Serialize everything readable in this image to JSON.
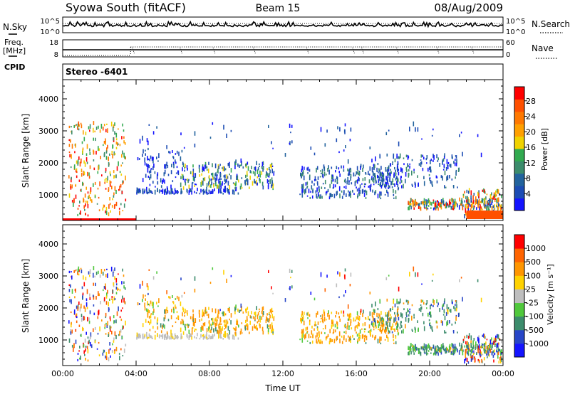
{
  "header": {
    "station": "Syowa South (fitACF)",
    "beam": "Beam 15",
    "date": "08/Aug/2009"
  },
  "noise_panel": {
    "left_label": "N.Sky",
    "right_label": "N.Search",
    "top_tick": "10^5",
    "bottom_tick": "10^0"
  },
  "freq_panel": {
    "left_label_1": "Freq.",
    "left_label_2": "[MHz]",
    "left_top_tick": "18",
    "left_bottom_tick": "8",
    "right_label": "Nave",
    "right_top_tick": "60",
    "right_bottom_tick": "0"
  },
  "cpid": {
    "label": "CPID",
    "value": "Stereo -6401"
  },
  "chart_data": [
    {
      "type": "heatmap",
      "ylabel": "Slant Range [km]",
      "xlabel": "",
      "y_ticks": [
        "1000",
        "2000",
        "3000",
        "4000"
      ],
      "ylim": [
        200,
        4600
      ],
      "x_range_hours": [
        0,
        24
      ],
      "colorbar": {
        "label": "Power [dB]",
        "ticks": [
          "4",
          "8",
          "12",
          "16",
          "20",
          "24",
          "28"
        ],
        "colors": [
          "#1414ff",
          "#1c4cb4",
          "#23639d",
          "#3c8c6c",
          "#32aa50",
          "#f0d200",
          "#ffa000",
          "#ff7800",
          "#ff5000",
          "#ff0000"
        ]
      }
    },
    {
      "type": "heatmap",
      "ylabel": "Slant Range [km]",
      "xlabel": "Time UT",
      "x_ticks": [
        "00:00",
        "04:00",
        "08:00",
        "12:00",
        "16:00",
        "20:00",
        "00:00"
      ],
      "y_ticks": [
        "1000",
        "2000",
        "3000",
        "4000"
      ],
      "ylim": [
        200,
        4600
      ],
      "x_range_hours": [
        0,
        24
      ],
      "colorbar": {
        "label": "Velocity [m s⁻¹]",
        "ticks": [
          "1000",
          "500",
          "100",
          "25",
          "-25",
          "-100",
          "-500",
          "-1000"
        ],
        "colors": [
          "#1414ff",
          "#2846c8",
          "#3c8c6c",
          "#50c83c",
          "#bebebe",
          "#ffd200",
          "#ff9600",
          "#ff6400",
          "#ff0000"
        ]
      }
    }
  ]
}
